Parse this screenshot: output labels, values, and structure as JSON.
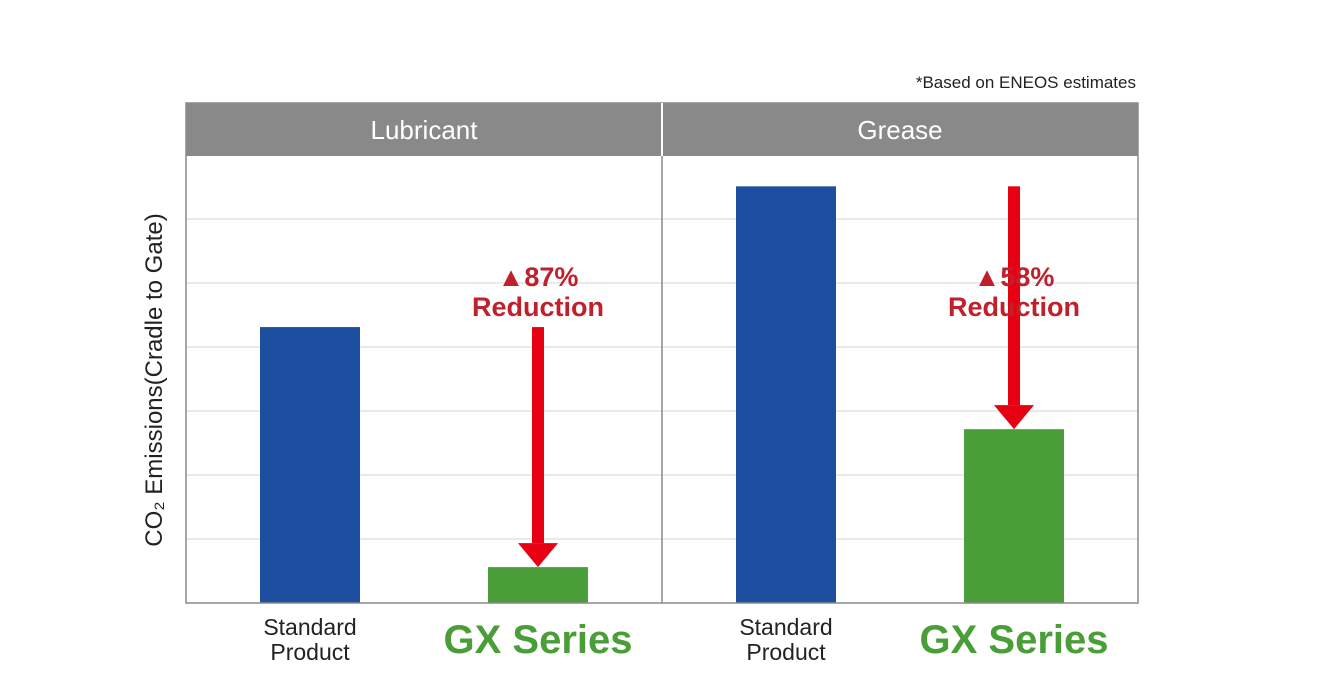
{
  "note": "*Based on ENEOS estimates",
  "y_axis_label": "CO₂  Emissions(Cradle to Gate)",
  "colors": {
    "standard_bar": "#1c4fa0",
    "gx_bar": "#4a9e37",
    "arrow": "#e60012",
    "reduction_text": "#c0202b",
    "header_bg": "#898989",
    "grid": "#e4e4e4",
    "frame": "#8a8a8a"
  },
  "chart_data": [
    {
      "type": "bar",
      "title": "Lubricant",
      "categories": [
        "Standard Product",
        "GX Series"
      ],
      "values": [
        100,
        13
      ],
      "ylim": [
        0,
        162
      ],
      "grid": true,
      "reduction": {
        "line1": "▲87%",
        "line2": "Reduction"
      }
    },
    {
      "type": "bar",
      "title": "Grease",
      "categories": [
        "Standard Product",
        "GX Series"
      ],
      "values": [
        151,
        63
      ],
      "ylim": [
        0,
        162
      ],
      "grid": true,
      "reduction": {
        "line1": "▲58%",
        "line2": "Reduction"
      }
    }
  ],
  "category_labels": {
    "standard_line1": "Standard",
    "standard_line2": "Product",
    "gx": "GX Series"
  }
}
